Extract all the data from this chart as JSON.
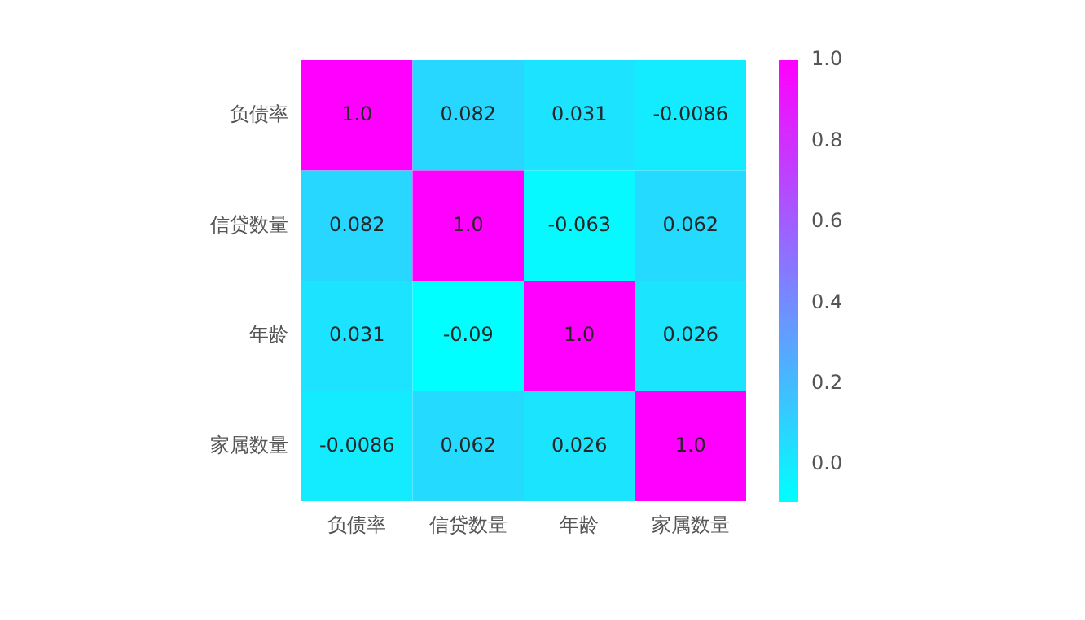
{
  "chart_data": {
    "type": "heatmap",
    "categories": [
      "负债率",
      "信贷数量",
      "年龄",
      "家属数量"
    ],
    "y_categories": [
      "负债率",
      "信贷数量",
      "年龄",
      "家属数量"
    ],
    "cells": [
      [
        1.0,
        0.082,
        0.031,
        -0.0086
      ],
      [
        0.082,
        1.0,
        -0.063,
        0.062
      ],
      [
        0.031,
        -0.09,
        1.0,
        0.026
      ],
      [
        -0.0086,
        0.062,
        0.026,
        1.0
      ]
    ],
    "cell_labels": [
      [
        "1.0",
        "0.082",
        "0.031",
        "-0.0086"
      ],
      [
        "0.082",
        "1.0",
        "-0.063",
        "0.062"
      ],
      [
        "0.031",
        "-0.09",
        "1.0",
        "0.026"
      ],
      [
        "-0.0086",
        "0.062",
        "0.026",
        "1.0"
      ]
    ],
    "clim": [
      -0.09,
      1.0
    ],
    "cticks": [
      {
        "value": 0,
        "label": "0.0"
      },
      {
        "value": 0.2,
        "label": "0.2"
      },
      {
        "value": 0.4,
        "label": "0.4"
      },
      {
        "value": 0.6,
        "label": "0.6"
      },
      {
        "value": 0.8,
        "label": "0.8"
      },
      {
        "value": 1.0,
        "label": "1.0"
      }
    ]
  }
}
